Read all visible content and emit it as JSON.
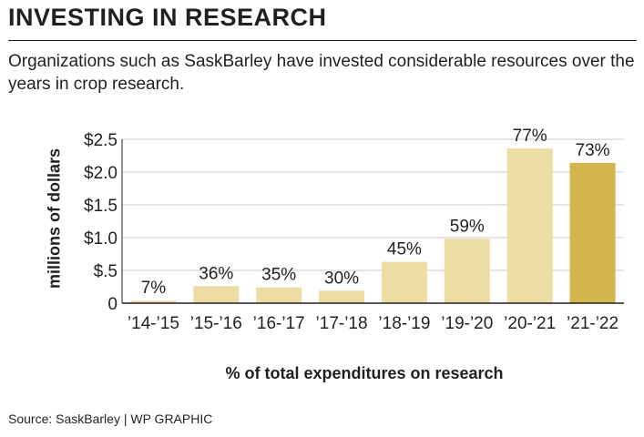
{
  "header": {
    "title": "INVESTING IN RESEARCH",
    "subtitle": "Organizations such as SaskBarley have invested considerable resources over the years in crop research."
  },
  "footer": {
    "source": "Source: SaskBarley  |  WP GRAPHIC"
  },
  "colors": {
    "bar": "#ecdda5",
    "highlight_bar": "#d2b54d",
    "grid": "#c8c8c8",
    "axis": "#231f20"
  },
  "chart_data": {
    "type": "bar",
    "xlabel": "% of total expenditures on research",
    "ylabel": "millions of dollars",
    "categories": [
      "’14-’15",
      "’15-’16",
      "’16-’17",
      "’17-’18",
      "’18-’19",
      "’19-’20",
      "’20-’21",
      "’21-’22"
    ],
    "values": [
      0.04,
      0.26,
      0.24,
      0.19,
      0.63,
      0.98,
      2.36,
      2.14
    ],
    "data_labels": [
      "7%",
      "36%",
      "35%",
      "30%",
      "45%",
      "59%",
      "77%",
      "73%"
    ],
    "highlight_index": 7,
    "ylim": [
      0,
      2.5
    ],
    "yticks": [
      0,
      0.5,
      1.0,
      1.5,
      2.0,
      2.5
    ],
    "ytick_labels": [
      "0",
      "$.5",
      "$1.0",
      "$1.5",
      "$2.0",
      "$2.5"
    ],
    "grid": true,
    "legend": "none"
  }
}
